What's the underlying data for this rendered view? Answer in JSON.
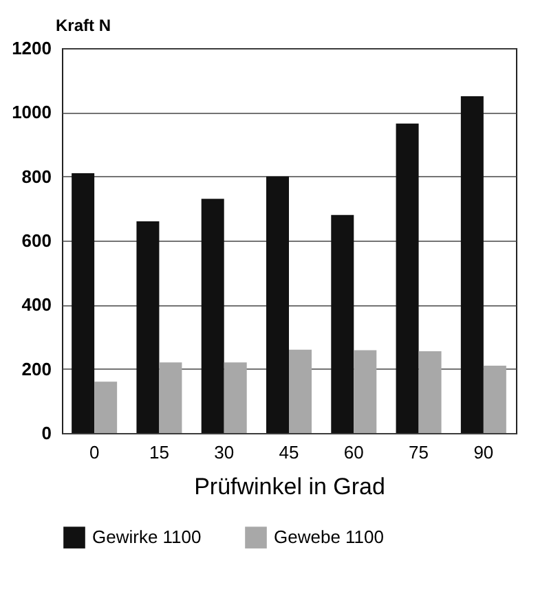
{
  "chart_data": {
    "type": "bar",
    "ylabel": "Kraft N",
    "xlabel": "Prüfwinkel in Grad",
    "categories": [
      "0",
      "15",
      "30",
      "45",
      "60",
      "75",
      "90"
    ],
    "series": [
      {
        "name": "Gewirke 1100",
        "color": "#111111",
        "values": [
          810,
          660,
          730,
          800,
          680,
          965,
          1050
        ]
      },
      {
        "name": "Gewebe 1100",
        "color": "#a8a8a8",
        "values": [
          160,
          220,
          220,
          260,
          258,
          255,
          210
        ]
      }
    ],
    "ylim": [
      0,
      1200
    ],
    "yticks": [
      0,
      200,
      400,
      600,
      800,
      1000,
      1200
    ],
    "grid": "y",
    "legend": "bottom"
  }
}
